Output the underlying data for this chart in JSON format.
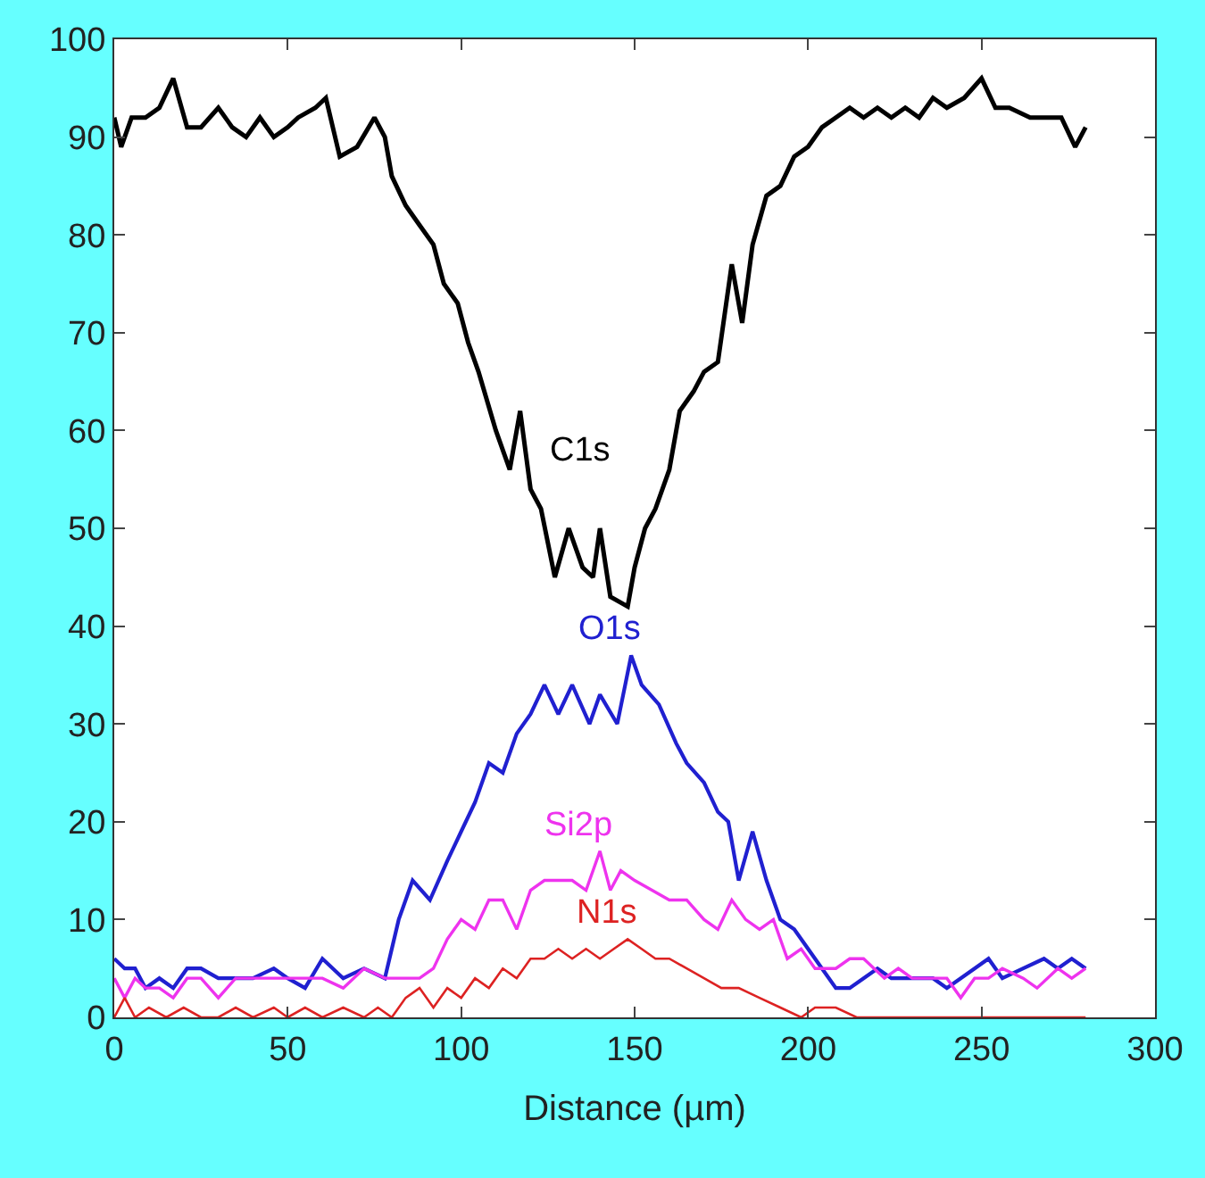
{
  "chart_data": {
    "type": "line",
    "xlabel": "Distance (µm)",
    "xlim": [
      0,
      300
    ],
    "ylim": [
      0,
      100
    ],
    "xticks": [
      0,
      50,
      100,
      150,
      200,
      250,
      300
    ],
    "yticks": [
      0,
      10,
      20,
      30,
      40,
      50,
      60,
      70,
      80,
      90,
      100
    ],
    "marker": "none",
    "line_style": "solid",
    "series": [
      {
        "name": "C1s",
        "color": "#000000",
        "x": [
          0,
          2,
          5,
          9,
          13,
          17,
          21,
          25,
          30,
          34,
          38,
          42,
          46,
          50,
          53,
          58,
          61,
          65,
          70,
          75,
          78,
          80,
          84,
          88,
          92,
          95,
          99,
          102,
          105,
          110,
          114,
          117,
          120,
          123,
          127,
          131,
          135,
          138,
          140,
          143,
          148,
          150,
          153,
          156,
          160,
          163,
          167,
          170,
          174,
          178,
          181,
          184,
          188,
          192,
          196,
          200,
          204,
          208,
          212,
          216,
          220,
          224,
          228,
          232,
          236,
          240,
          245,
          250,
          254,
          258,
          264,
          270,
          273,
          277,
          280
        ],
        "values": [
          92,
          89,
          92,
          92,
          93,
          96,
          91,
          91,
          93,
          91,
          90,
          92,
          90,
          91,
          92,
          93,
          94,
          88,
          89,
          92,
          90,
          86,
          83,
          81,
          79,
          75,
          73,
          69,
          66,
          60,
          56,
          62,
          54,
          52,
          45,
          50,
          46,
          45,
          50,
          43,
          42,
          46,
          50,
          52,
          56,
          62,
          64,
          66,
          67,
          77,
          71,
          79,
          84,
          85,
          88,
          89,
          91,
          92,
          93,
          92,
          93,
          92,
          93,
          92,
          94,
          93,
          94,
          96,
          93,
          93,
          92,
          92,
          92,
          89,
          91
        ]
      },
      {
        "name": "O1s",
        "color": "#2020d0",
        "x": [
          0,
          3,
          6,
          9,
          13,
          17,
          21,
          25,
          30,
          35,
          40,
          46,
          50,
          55,
          60,
          66,
          72,
          78,
          82,
          86,
          91,
          96,
          100,
          104,
          108,
          112,
          116,
          120,
          124,
          128,
          132,
          137,
          140,
          145,
          149,
          152,
          157,
          162,
          165,
          170,
          174,
          177,
          180,
          184,
          188,
          192,
          196,
          200,
          204,
          208,
          212,
          216,
          220,
          224,
          228,
          232,
          236,
          240,
          244,
          248,
          252,
          256,
          262,
          268,
          272,
          276,
          280
        ],
        "values": [
          6,
          5,
          5,
          3,
          4,
          3,
          5,
          5,
          4,
          4,
          4,
          5,
          4,
          3,
          6,
          4,
          5,
          4,
          10,
          14,
          12,
          16,
          19,
          22,
          26,
          25,
          29,
          31,
          34,
          31,
          34,
          30,
          33,
          30,
          37,
          34,
          32,
          28,
          26,
          24,
          21,
          20,
          14,
          19,
          14,
          10,
          9,
          7,
          5,
          3,
          3,
          4,
          5,
          4,
          4,
          4,
          4,
          3,
          4,
          5,
          6,
          4,
          5,
          6,
          5,
          6,
          5
        ]
      },
      {
        "name": "Si2p",
        "color": "#ee33ee",
        "x": [
          0,
          3,
          6,
          9,
          13,
          17,
          21,
          25,
          30,
          35,
          40,
          46,
          50,
          55,
          60,
          66,
          72,
          78,
          84,
          88,
          92,
          96,
          100,
          104,
          108,
          112,
          116,
          120,
          124,
          128,
          132,
          136,
          140,
          143,
          146,
          150,
          155,
          160,
          165,
          170,
          174,
          178,
          182,
          186,
          190,
          194,
          198,
          202,
          208,
          212,
          216,
          222,
          226,
          230,
          236,
          240,
          244,
          248,
          252,
          256,
          262,
          266,
          272,
          276,
          280
        ],
        "values": [
          4,
          2,
          4,
          3,
          3,
          2,
          4,
          4,
          2,
          4,
          4,
          4,
          4,
          4,
          4,
          3,
          5,
          4,
          4,
          4,
          5,
          8,
          10,
          9,
          12,
          12,
          9,
          13,
          14,
          14,
          14,
          13,
          17,
          13,
          15,
          14,
          13,
          12,
          12,
          10,
          9,
          12,
          10,
          9,
          10,
          6,
          7,
          5,
          5,
          6,
          6,
          4,
          5,
          4,
          4,
          4,
          2,
          4,
          4,
          5,
          4,
          3,
          5,
          4,
          5
        ]
      },
      {
        "name": "N1s",
        "color": "#dd2222",
        "x": [
          0,
          3,
          6,
          10,
          15,
          20,
          25,
          30,
          35,
          40,
          46,
          50,
          55,
          60,
          66,
          72,
          76,
          80,
          84,
          88,
          92,
          96,
          100,
          104,
          108,
          112,
          116,
          120,
          124,
          128,
          132,
          136,
          140,
          144,
          148,
          152,
          156,
          160,
          165,
          170,
          175,
          180,
          186,
          192,
          198,
          202,
          208,
          214,
          220,
          230,
          240,
          250,
          260,
          270,
          280
        ],
        "values": [
          0,
          2,
          0,
          1,
          0,
          1,
          0,
          0,
          1,
          0,
          1,
          0,
          1,
          0,
          1,
          0,
          1,
          0,
          2,
          3,
          1,
          3,
          2,
          4,
          3,
          5,
          4,
          6,
          6,
          7,
          6,
          7,
          6,
          7,
          8,
          7,
          6,
          6,
          5,
          4,
          3,
          3,
          2,
          1,
          0,
          1,
          1,
          0,
          0,
          0,
          0,
          0,
          0,
          0,
          0
        ]
      }
    ]
  }
}
